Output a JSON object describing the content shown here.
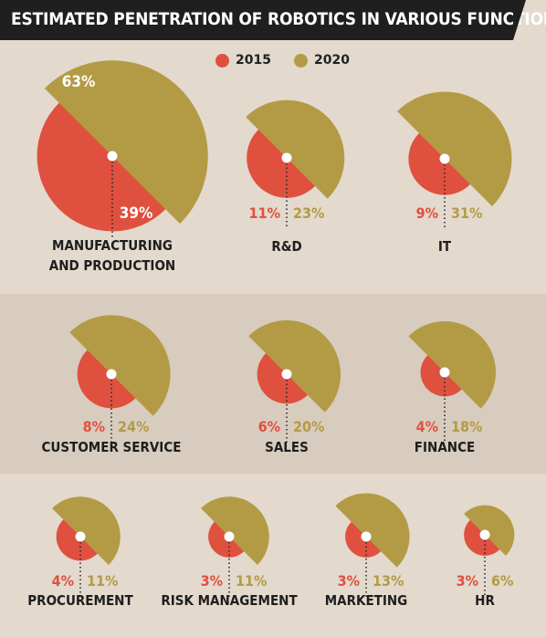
{
  "title": "ESTIMATED PENETRATION OF ROBOTICS IN VARIOUS FUNCTIONS",
  "legend": [
    {
      "label": "2015",
      "color": "#e0503f"
    },
    {
      "label": "2020",
      "color": "#b39b45"
    }
  ],
  "chart_data": {
    "type": "pie",
    "title": "ESTIMATED PENETRATION OF ROBOTICS IN VARIOUS FUNCTIONS",
    "series_names": [
      "2015",
      "2020"
    ],
    "colors": {
      "2015": "#e0503f",
      "2020": "#b39b45"
    },
    "items": [
      {
        "name": "MANUFACTURING AND PRODUCTION",
        "name_lines": [
          "MANUFACTURING",
          "AND PRODUCTION"
        ],
        "v2015": 39,
        "v2020": 63,
        "l2015": "39%",
        "l2020": "63%",
        "layout": "inside"
      },
      {
        "name": "R&D",
        "name_lines": [
          "R&D"
        ],
        "v2015": 11,
        "v2020": 23,
        "l2015": "11%",
        "l2020": "23%",
        "layout": "below"
      },
      {
        "name": "IT",
        "name_lines": [
          "IT"
        ],
        "v2015": 9,
        "v2020": 31,
        "l2015": "9%",
        "l2020": "31%",
        "layout": "below"
      },
      {
        "name": "CUSTOMER SERVICE",
        "name_lines": [
          "CUSTOMER SERVICE"
        ],
        "v2015": 8,
        "v2020": 24,
        "l2015": "8%",
        "l2020": "24%",
        "layout": "below"
      },
      {
        "name": "SALES",
        "name_lines": [
          "SALES"
        ],
        "v2015": 6,
        "v2020": 20,
        "l2015": "6%",
        "l2020": "20%",
        "layout": "below"
      },
      {
        "name": "FINANCE",
        "name_lines": [
          "FINANCE"
        ],
        "v2015": 4,
        "v2020": 18,
        "l2015": "4%",
        "l2020": "18%",
        "layout": "below"
      },
      {
        "name": "PROCUREMENT",
        "name_lines": [
          "PROCUREMENT"
        ],
        "v2015": 4,
        "v2020": 11,
        "l2015": "4%",
        "l2020": "11%",
        "layout": "below"
      },
      {
        "name": "RISK MANAGEMENT",
        "name_lines": [
          "RISK MANAGEMENT"
        ],
        "v2015": 3,
        "v2020": 11,
        "l2015": "3%",
        "l2020": "11%",
        "layout": "below"
      },
      {
        "name": "MARKETING",
        "name_lines": [
          "MARKETING"
        ],
        "v2015": 3,
        "v2020": 13,
        "l2015": "3%",
        "l2020": "13%",
        "layout": "below"
      },
      {
        "name": "HR",
        "name_lines": [
          "HR"
        ],
        "v2015": 3,
        "v2020": 6,
        "l2015": "3%",
        "l2020": "6%",
        "layout": "below"
      }
    ]
  }
}
